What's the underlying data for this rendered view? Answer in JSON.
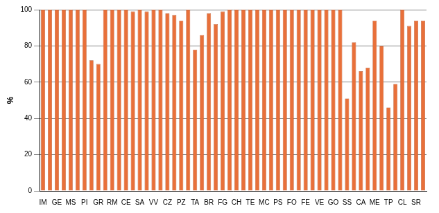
{
  "chart_data": {
    "type": "bar",
    "ylabel": "%",
    "categories": [
      "IM",
      null,
      "GE",
      null,
      "MS",
      null,
      "PI",
      null,
      "GR",
      null,
      "RM",
      null,
      "CE",
      null,
      "SA",
      null,
      "VV",
      null,
      "CZ",
      null,
      "PZ",
      null,
      "TA",
      null,
      "BR",
      null,
      "FG",
      null,
      "CH",
      null,
      "TE",
      null,
      "MC",
      null,
      "PS",
      null,
      "FO",
      null,
      "FE",
      null,
      "VE",
      null,
      "GO",
      null,
      "SS",
      null,
      "CA",
      null,
      "ME",
      null,
      "TP",
      null,
      "CL",
      null,
      "SR",
      null
    ],
    "values": [
      100,
      100,
      100,
      100,
      100,
      100,
      100,
      72,
      70,
      100,
      100,
      100,
      100,
      99,
      100,
      99,
      100,
      100,
      98,
      97,
      94,
      100,
      78,
      86,
      98,
      92,
      99,
      100,
      100,
      100,
      100,
      100,
      100,
      100,
      100,
      100,
      100,
      100,
      100,
      100,
      100,
      100,
      100,
      100,
      51,
      82,
      66,
      68,
      94,
      80,
      46,
      59,
      100,
      91,
      94,
      94
    ],
    "color": "#e8703a",
    "ylim": [
      0,
      100
    ],
    "yticks": [
      0,
      20,
      40,
      60,
      80,
      100
    ],
    "grid": true
  }
}
